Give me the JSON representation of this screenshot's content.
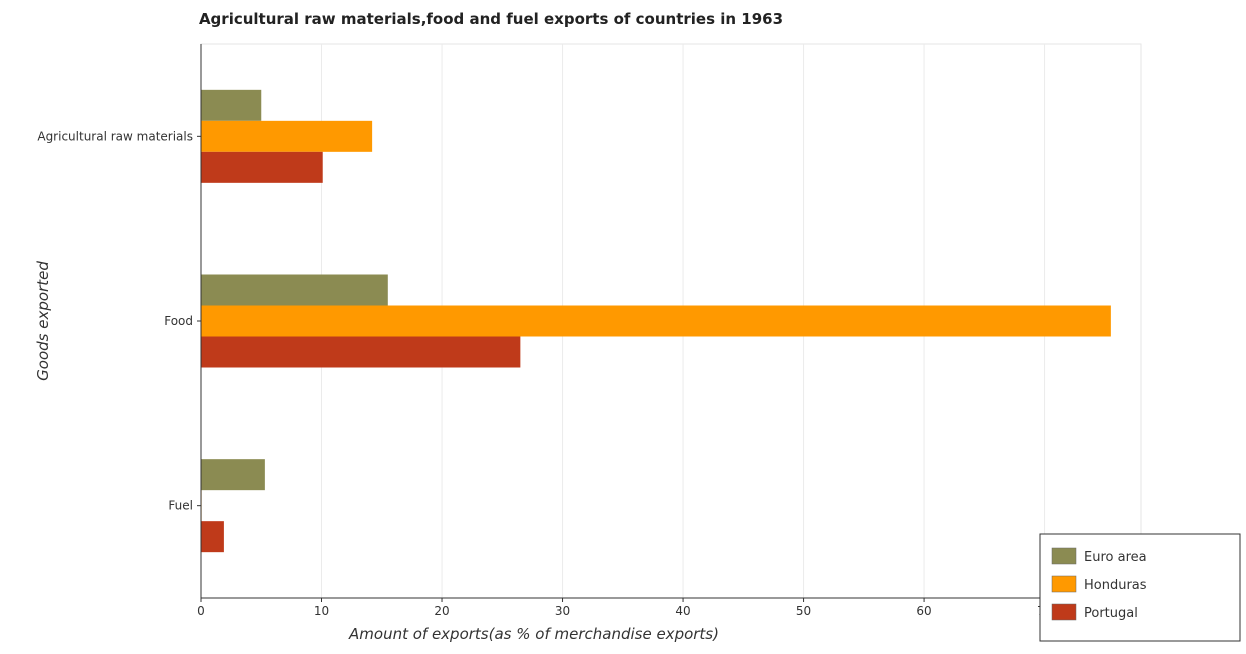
{
  "chart_data": {
    "type": "bar",
    "orientation": "horizontal",
    "title": "Agricultural raw materials,food and fuel exports of countries in 1963",
    "xlabel": "Amount of exports(as % of merchandise exports)",
    "ylabel": "Goods exported",
    "categories": [
      "Agricultural raw materials",
      "Food",
      "Fuel"
    ],
    "xlim": [
      0,
      78
    ],
    "xticks": [
      0,
      10,
      20,
      30,
      40,
      50,
      60,
      70
    ],
    "grid": true,
    "legend_position": "bottom-right",
    "series": [
      {
        "name": "Euro area",
        "color": "#8b8b52",
        "values": [
          5.0,
          15.5,
          5.3
        ]
      },
      {
        "name": "Honduras",
        "color": "#ff9900",
        "values": [
          14.2,
          75.5,
          0.02
        ]
      },
      {
        "name": "Portugal",
        "color": "#bf3a1a",
        "values": [
          10.1,
          26.5,
          1.9
        ]
      }
    ]
  }
}
